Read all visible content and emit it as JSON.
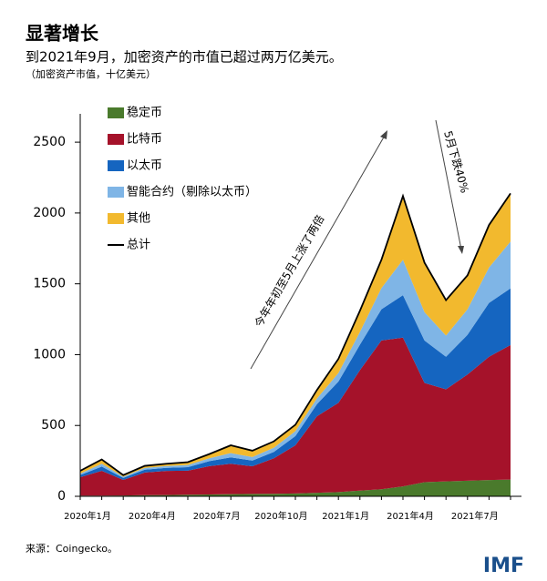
{
  "chart_data": {
    "type": "stacked_area",
    "title": "显著增长",
    "subtitle": "到2021年9月，加密资产的市值已超过两万亿美元。",
    "unit_note": "（加密资产市值，十亿美元）",
    "source": "来源：Coingecko。",
    "logo": "IMF",
    "annotations": [
      "今年年初至5月上涨了两倍",
      "5月下跌40%"
    ],
    "categories": [
      "2020年1月",
      null,
      null,
      "2020年4月",
      null,
      null,
      "2020年7月",
      null,
      null,
      "2020年10月",
      null,
      null,
      "2021年1月",
      null,
      null,
      "2021年4月",
      null,
      null,
      "2021年7月",
      null,
      null
    ],
    "series": [
      {
        "name": "稳定币",
        "color": "#4a7a2c",
        "values": [
          5,
          5,
          6,
          8,
          9,
          11,
          13,
          15,
          17,
          18,
          20,
          25,
          30,
          40,
          50,
          70,
          100,
          105,
          110,
          115,
          118
        ]
      },
      {
        "name": "比特币",
        "color": "#a5122a",
        "values": [
          130,
          175,
          110,
          160,
          170,
          170,
          200,
          215,
          195,
          250,
          340,
          540,
          630,
          850,
          1050,
          1050,
          700,
          650,
          750,
          870,
          950
        ]
      },
      {
        "name": "以太币",
        "color": "#1565c0",
        "values": [
          15,
          30,
          14,
          20,
          22,
          25,
          35,
          45,
          40,
          45,
          65,
          85,
          150,
          180,
          220,
          300,
          300,
          230,
          280,
          380,
          400
        ]
      },
      {
        "name": "智能合约（剔除以太币）",
        "color": "#7fb5e6",
        "values": [
          10,
          20,
          8,
          12,
          13,
          15,
          20,
          30,
          25,
          30,
          35,
          40,
          60,
          90,
          150,
          250,
          200,
          150,
          180,
          250,
          330
        ]
      },
      {
        "name": "其他",
        "color": "#f2b92e",
        "values": [
          20,
          30,
          12,
          15,
          16,
          20,
          30,
          55,
          45,
          45,
          45,
          60,
          100,
          150,
          200,
          450,
          350,
          250,
          240,
          300,
          340
        ]
      }
    ],
    "total": {
      "name": "总计",
      "color": "#000000",
      "values": [
        180,
        260,
        150,
        215,
        230,
        241,
        298,
        360,
        322,
        388,
        505,
        750,
        970,
        1310,
        1670,
        2120,
        1650,
        1385,
        1560,
        1915,
        2138
      ]
    },
    "ylim": [
      0,
      2700
    ],
    "yticks": [
      0,
      500,
      1000,
      1500,
      2000,
      2500
    ]
  }
}
